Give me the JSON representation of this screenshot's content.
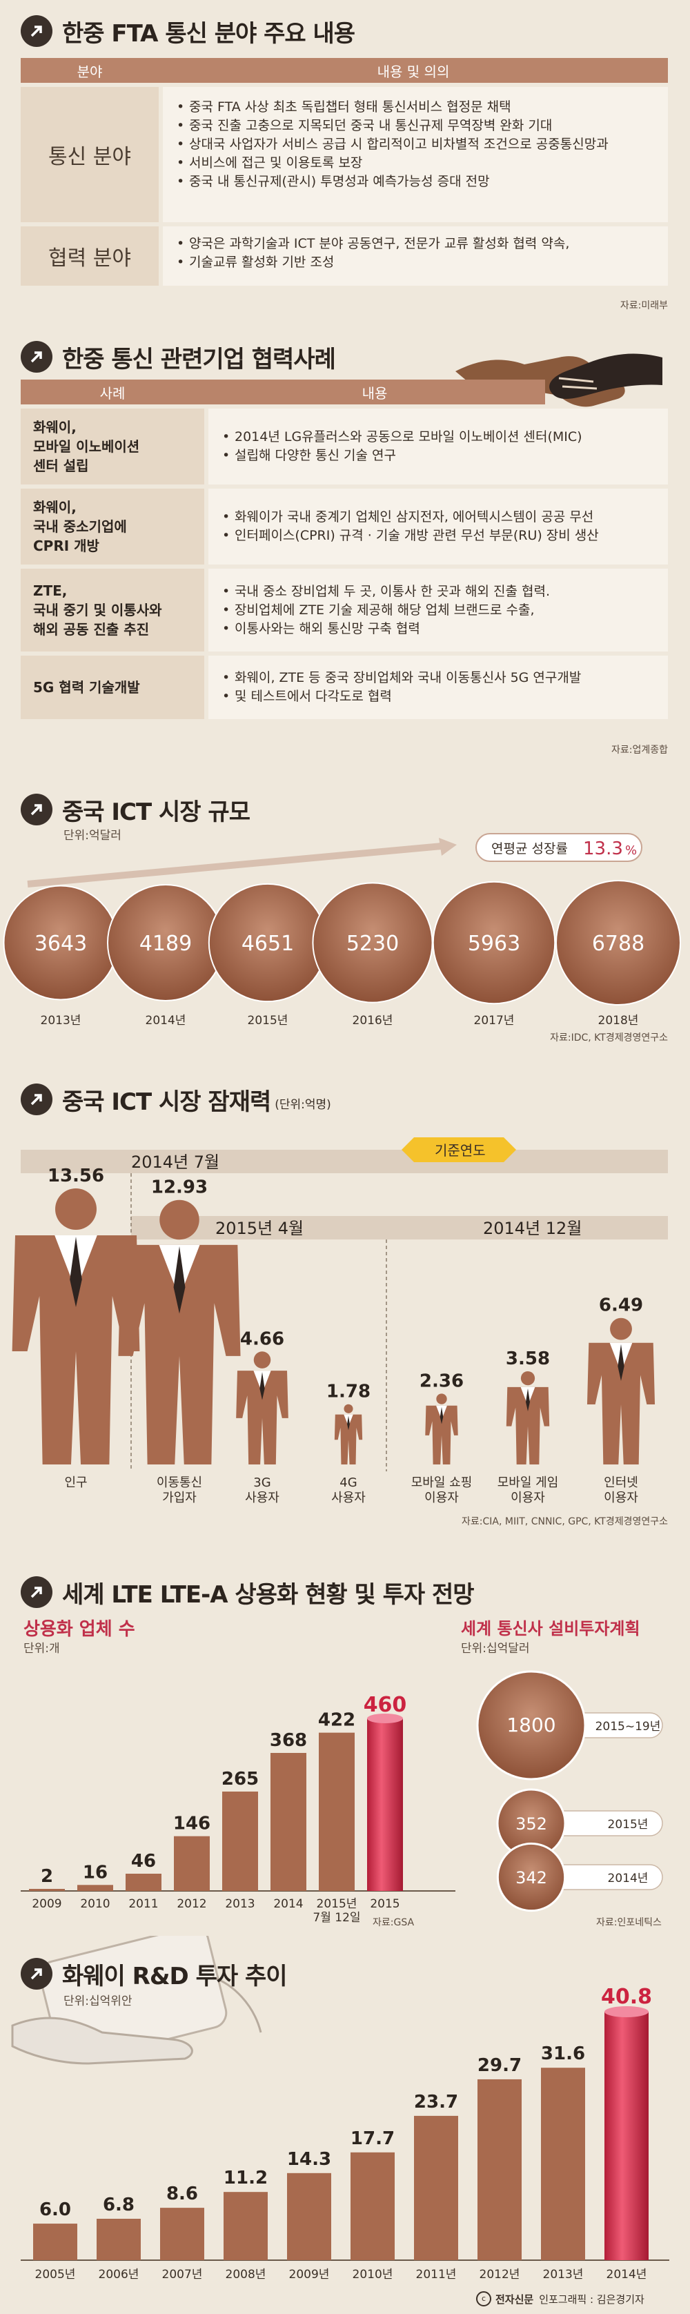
{
  "fta": {
    "title": "한중 FTA 통신 분야 주요 내용",
    "head": [
      "분야",
      "내용 및 의의"
    ],
    "rows": [
      {
        "label": "통신 분야",
        "items": [
          "중국 FTA 사상 최초 독립챕터 형태 통신서비스 협정문 채택",
          "중국 진출 고충으로 지목되던 중국 내 통신규제 무역장벽 완화 기대",
          "상대국 사업자가 서비스 공급 시 합리적이고 비차별적 조건으로 공중통신망과",
          "서비스에 접근 및 이용토록 보장",
          "중국 내 통신규제(관시) 투명성과 예측가능성 증대 전망"
        ]
      },
      {
        "label": "협력 분야",
        "items": [
          "양국은 과학기술과 ICT 분야 공동연구, 전문가 교류 활성화 협력 약속,",
          "기술교류 활성화 기반 조성"
        ]
      }
    ],
    "source": "자료:미래부"
  },
  "coop": {
    "title": "한중 통신 관련기업 협력사례",
    "head": [
      "사례",
      "내용"
    ],
    "rows": [
      {
        "label": [
          "화웨이,",
          "모바일 이노베이션",
          "센터 설립"
        ],
        "items": [
          "2014년 LG유플러스와 공동으로 모바일 이노베이션 센터(MIC)",
          "설립해 다양한 통신 기술 연구"
        ]
      },
      {
        "label": [
          "화웨이,",
          "국내 중소기업에",
          "CPRI 개방"
        ],
        "items": [
          "화웨이가 국내 중계기 업체인 삼지전자, 에어텍시스템이 공공 무선",
          "인터페이스(CPRI) 규격 · 기술 개방 관련 무선 부문(RU) 장비 생산"
        ]
      },
      {
        "label": [
          "ZTE,",
          "국내 중기 및 이통사와",
          "해외 공동 진출 추진"
        ],
        "items": [
          "국내 중소 장비업체 두 곳, 이통사 한 곳과 해외 진출 협력.",
          "장비업체에 ZTE 기술 제공해 해당 업체 브랜드로 수출,",
          "이통사와는 해외 통신망 구축 협력"
        ]
      },
      {
        "label": [
          "5G 협력 기술개발"
        ],
        "items": [
          "화웨이, ZTE 등 중국 장비업체와 국내 이동통신사 5G 연구개발",
          "및 테스트에서 다각도로 협력"
        ]
      }
    ],
    "source": "자료:업계종합"
  },
  "ict_market": {
    "title": "중국 ICT 시장 규모",
    "unit": "단위:억달러",
    "growth_label": "연평균 성장률",
    "growth_value": "13.3",
    "growth_pct": "%",
    "source": "자료:IDC, KT경제경영연구소",
    "chart_data": {
      "type": "bubble",
      "categories": [
        "2013년",
        "2014년",
        "2015년",
        "2016년",
        "2017년",
        "2018년"
      ],
      "values": [
        3643,
        4189,
        4651,
        5230,
        5963,
        6788
      ]
    }
  },
  "ict_potential": {
    "title": "중국 ICT 시장 잠재력",
    "unit": "(단위:억명)",
    "base_year_label": "기준연도",
    "periods": [
      "2014년 7월",
      "2015년 4월",
      "2014년 12월"
    ],
    "source": "자료:CIA, MIIT, CNNIC, GPC, KT경제경영연구소",
    "chart_data": {
      "type": "pictogram",
      "categories": [
        [
          "인구"
        ],
        [
          "이동통신",
          "가입자"
        ],
        [
          "3G",
          "사용자"
        ],
        [
          "4G",
          "사용자"
        ],
        [
          "모바일 쇼핑",
          "이용자"
        ],
        [
          "모바일 게임",
          "이용자"
        ],
        [
          "인터넷",
          "이용자"
        ]
      ],
      "values": [
        13.56,
        12.93,
        4.66,
        1.78,
        2.36,
        3.58,
        6.49
      ],
      "value_labels": [
        "13.56",
        "12.93",
        "4.66",
        "1.78",
        "2.36",
        "3.58",
        "6.49"
      ]
    }
  },
  "lte": {
    "title": "세계 LTE LTE-A 상용화 현황 및 투자 전망",
    "left_title": "상용화 업체 수",
    "left_unit": "단위:개",
    "right_title": "세계 통신사 설비투자계획",
    "right_unit": "단위:십억달러",
    "source_left": "자료:GSA",
    "source_right": "자료:인포네틱스",
    "chart_data": [
      {
        "type": "bar",
        "categories": [
          [
            "2009"
          ],
          [
            "2010"
          ],
          [
            "2011"
          ],
          [
            "2012"
          ],
          [
            "2013"
          ],
          [
            "2014"
          ],
          [
            "2015년",
            "7월 12일"
          ],
          [
            "2015"
          ]
        ],
        "values": [
          2,
          16,
          46,
          146,
          265,
          368,
          422,
          460
        ]
      },
      {
        "type": "bubble",
        "categories": [
          "2015~19년",
          "2015년",
          "2014년"
        ],
        "values": [
          1800,
          352,
          342
        ]
      }
    ]
  },
  "huawei": {
    "title": "화웨이 R&D 투자 추이",
    "unit": "단위:십억위안",
    "chart_data": {
      "type": "bar",
      "categories": [
        "2005년",
        "2006년",
        "2007년",
        "2008년",
        "2009년",
        "2010년",
        "2011년",
        "2012년",
        "2013년",
        "2014년"
      ],
      "values": [
        6.0,
        6.8,
        8.6,
        11.2,
        14.3,
        17.7,
        23.7,
        29.7,
        31.6,
        40.8
      ],
      "value_labels": [
        "6.0",
        "6.8",
        "8.6",
        "11.2",
        "14.3",
        "17.7",
        "23.7",
        "29.7",
        "31.6",
        "40.8"
      ]
    }
  },
  "credit": {
    "brand": "전자신문",
    "text": "인포그래픽 : 김은경기자"
  },
  "colors": {
    "bar": "#a86a4e",
    "highlight": "#cc2340",
    "accent": "#c0304a",
    "dark": "#3a302a",
    "table_head": "#b9846a"
  }
}
